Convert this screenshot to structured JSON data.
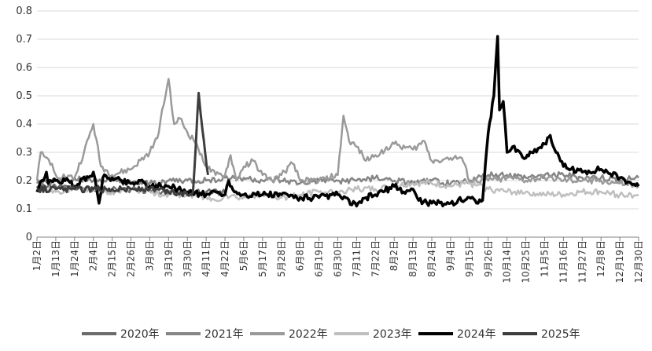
{
  "chart_data": {
    "type": "line",
    "ylim": [
      0,
      0.8
    ],
    "yticks": [
      "0",
      "0.1",
      "0.2",
      "0.3",
      "0.4",
      "0.5",
      "0.6",
      "0.7",
      "0.8"
    ],
    "xlabels": [
      "1月2日",
      "1月13日",
      "1月24日",
      "2月4日",
      "2月15日",
      "2月26日",
      "3月8日",
      "3月19日",
      "3月30日",
      "4月11日",
      "4月22日",
      "5月6日",
      "5月17日",
      "5月28日",
      "6月8日",
      "6月19日",
      "6月30日",
      "7月11日",
      "7月22日",
      "8月2日",
      "8月13日",
      "8月24日",
      "9月4日",
      "9月15日",
      "9月26日",
      "10月14日",
      "10月25日",
      "11月5日",
      "11月16日",
      "11月27日",
      "12月8日",
      "12月19日",
      "12月30日"
    ],
    "grid": true,
    "legend_position": "bottom",
    "series": [
      {
        "name": "2020年",
        "color": "#6b6b6b",
        "width": 2.5,
        "end": 10.0,
        "points": [
          [
            0,
            0.18
          ],
          [
            1,
            0.18
          ],
          [
            2,
            0.175
          ],
          [
            3,
            0.17
          ],
          [
            4,
            0.17
          ],
          [
            5,
            0.17
          ],
          [
            6,
            0.165
          ],
          [
            7,
            0.16
          ],
          [
            8,
            0.155
          ],
          [
            9,
            0.16
          ],
          [
            10,
            0.16
          ]
        ]
      },
      {
        "name": "2021年",
        "color": "#858585",
        "width": 2.5,
        "end": 32.0,
        "points": [
          [
            0,
            0.19
          ],
          [
            1,
            0.2
          ],
          [
            2,
            0.21
          ],
          [
            3,
            0.2
          ],
          [
            4,
            0.2
          ],
          [
            5,
            0.19
          ],
          [
            6,
            0.19
          ],
          [
            7,
            0.2
          ],
          [
            8,
            0.2
          ],
          [
            9,
            0.2
          ],
          [
            10,
            0.21
          ],
          [
            11,
            0.21
          ],
          [
            12,
            0.2
          ],
          [
            13,
            0.2
          ],
          [
            14,
            0.19
          ],
          [
            15,
            0.2
          ],
          [
            16,
            0.2
          ],
          [
            17,
            0.2
          ],
          [
            18,
            0.21
          ],
          [
            19,
            0.2
          ],
          [
            20,
            0.19
          ],
          [
            21,
            0.2
          ],
          [
            22,
            0.19
          ],
          [
            23,
            0.2
          ],
          [
            24,
            0.22
          ],
          [
            25,
            0.22
          ],
          [
            26,
            0.21
          ],
          [
            27,
            0.22
          ],
          [
            28,
            0.22
          ],
          [
            29,
            0.21
          ],
          [
            30,
            0.21
          ],
          [
            31,
            0.2
          ],
          [
            32,
            0.21
          ]
        ]
      },
      {
        "name": "2022年",
        "color": "#9a9a9a",
        "width": 2.5,
        "end": 32.0,
        "points": [
          [
            0,
            0.2
          ],
          [
            0.2,
            0.3
          ],
          [
            0.8,
            0.26
          ],
          [
            1,
            0.22
          ],
          [
            2,
            0.21
          ],
          [
            2.5,
            0.3
          ],
          [
            3,
            0.4
          ],
          [
            3.4,
            0.25
          ],
          [
            4,
            0.22
          ],
          [
            5,
            0.24
          ],
          [
            6,
            0.3
          ],
          [
            6.4,
            0.35
          ],
          [
            7,
            0.56
          ],
          [
            7.3,
            0.4
          ],
          [
            7.6,
            0.42
          ],
          [
            8,
            0.37
          ],
          [
            8.5,
            0.33
          ],
          [
            9,
            0.25
          ],
          [
            9.5,
            0.22
          ],
          [
            10,
            0.22
          ],
          [
            10.3,
            0.29
          ],
          [
            10.6,
            0.2
          ],
          [
            11,
            0.25
          ],
          [
            11.5,
            0.27
          ],
          [
            12,
            0.22
          ],
          [
            12.5,
            0.2
          ],
          [
            13,
            0.22
          ],
          [
            13.6,
            0.26
          ],
          [
            14,
            0.2
          ],
          [
            15,
            0.2
          ],
          [
            16,
            0.22
          ],
          [
            16.3,
            0.43
          ],
          [
            16.6,
            0.34
          ],
          [
            17,
            0.32
          ],
          [
            17.5,
            0.27
          ],
          [
            18,
            0.29
          ],
          [
            19,
            0.33
          ],
          [
            20,
            0.31
          ],
          [
            20.6,
            0.34
          ],
          [
            21,
            0.27
          ],
          [
            22,
            0.28
          ],
          [
            22.6,
            0.28
          ],
          [
            23,
            0.2
          ],
          [
            24,
            0.2
          ],
          [
            25,
            0.21
          ],
          [
            26,
            0.2
          ],
          [
            27,
            0.21
          ],
          [
            28,
            0.2
          ],
          [
            29,
            0.2
          ],
          [
            30,
            0.2
          ],
          [
            31,
            0.19
          ],
          [
            32,
            0.18
          ]
        ]
      },
      {
        "name": "2023年",
        "color": "#bfbfbf",
        "width": 2.5,
        "end": 32.0,
        "points": [
          [
            0,
            0.17
          ],
          [
            1,
            0.16
          ],
          [
            2,
            0.17
          ],
          [
            3,
            0.17
          ],
          [
            4,
            0.16
          ],
          [
            5,
            0.17
          ],
          [
            6,
            0.16
          ],
          [
            7,
            0.15
          ],
          [
            8,
            0.15
          ],
          [
            9,
            0.14
          ],
          [
            9.5,
            0.13
          ],
          [
            10,
            0.15
          ],
          [
            11,
            0.14
          ],
          [
            12,
            0.15
          ],
          [
            13,
            0.14
          ],
          [
            14,
            0.15
          ],
          [
            15,
            0.16
          ],
          [
            16,
            0.16
          ],
          [
            17,
            0.17
          ],
          [
            18,
            0.17
          ],
          [
            19,
            0.18
          ],
          [
            20,
            0.19
          ],
          [
            21,
            0.19
          ],
          [
            22,
            0.18
          ],
          [
            23,
            0.19
          ],
          [
            24,
            0.17
          ],
          [
            25,
            0.16
          ],
          [
            26,
            0.16
          ],
          [
            27,
            0.15
          ],
          [
            28,
            0.15
          ],
          [
            29,
            0.16
          ],
          [
            30,
            0.16
          ],
          [
            31,
            0.15
          ],
          [
            32,
            0.15
          ]
        ]
      },
      {
        "name": "2024年",
        "color": "#000000",
        "width": 3.5,
        "end": 32.0,
        "points": [
          [
            0,
            0.16
          ],
          [
            0.5,
            0.23
          ],
          [
            0.6,
            0.19
          ],
          [
            1,
            0.2
          ],
          [
            1.5,
            0.2
          ],
          [
            2,
            0.18
          ],
          [
            3,
            0.23
          ],
          [
            3.3,
            0.12
          ],
          [
            3.5,
            0.21
          ],
          [
            4,
            0.21
          ],
          [
            4.5,
            0.2
          ],
          [
            5,
            0.19
          ],
          [
            5.5,
            0.2
          ],
          [
            6,
            0.18
          ],
          [
            7,
            0.18
          ],
          [
            7.5,
            0.17
          ],
          [
            8,
            0.16
          ],
          [
            9,
            0.15
          ],
          [
            9.5,
            0.16
          ],
          [
            10,
            0.15
          ],
          [
            10.2,
            0.2
          ],
          [
            10.5,
            0.16
          ],
          [
            11,
            0.15
          ],
          [
            12,
            0.15
          ],
          [
            13,
            0.15
          ],
          [
            14,
            0.14
          ],
          [
            15,
            0.14
          ],
          [
            16,
            0.15
          ],
          [
            17,
            0.11
          ],
          [
            17.5,
            0.14
          ],
          [
            18,
            0.15
          ],
          [
            19,
            0.18
          ],
          [
            19.5,
            0.16
          ],
          [
            20,
            0.17
          ],
          [
            20.3,
            0.13
          ],
          [
            21,
            0.12
          ],
          [
            22,
            0.12
          ],
          [
            23,
            0.14
          ],
          [
            23.3,
            0.13
          ],
          [
            23.7,
            0.13
          ],
          [
            24,
            0.37
          ],
          [
            24.3,
            0.5
          ],
          [
            24.5,
            0.71
          ],
          [
            24.6,
            0.45
          ],
          [
            24.8,
            0.48
          ],
          [
            25,
            0.3
          ],
          [
            25.3,
            0.32
          ],
          [
            26,
            0.28
          ],
          [
            26.3,
            0.3
          ],
          [
            27,
            0.33
          ],
          [
            27.3,
            0.36
          ],
          [
            27.6,
            0.3
          ],
          [
            28,
            0.25
          ],
          [
            29,
            0.23
          ],
          [
            30,
            0.24
          ],
          [
            31,
            0.21
          ],
          [
            32,
            0.18
          ]
        ]
      },
      {
        "name": "2025年",
        "color": "#3d3d3d",
        "width": 3.0,
        "end": 9.3,
        "points": [
          [
            0,
            0.17
          ],
          [
            1,
            0.17
          ],
          [
            2,
            0.17
          ],
          [
            3,
            0.17
          ],
          [
            4,
            0.17
          ],
          [
            5,
            0.17
          ],
          [
            6,
            0.17
          ],
          [
            7,
            0.16
          ],
          [
            8,
            0.15
          ],
          [
            8.3,
            0.16
          ],
          [
            8.6,
            0.51
          ],
          [
            8.8,
            0.38
          ],
          [
            9.1,
            0.22
          ]
        ]
      }
    ]
  }
}
